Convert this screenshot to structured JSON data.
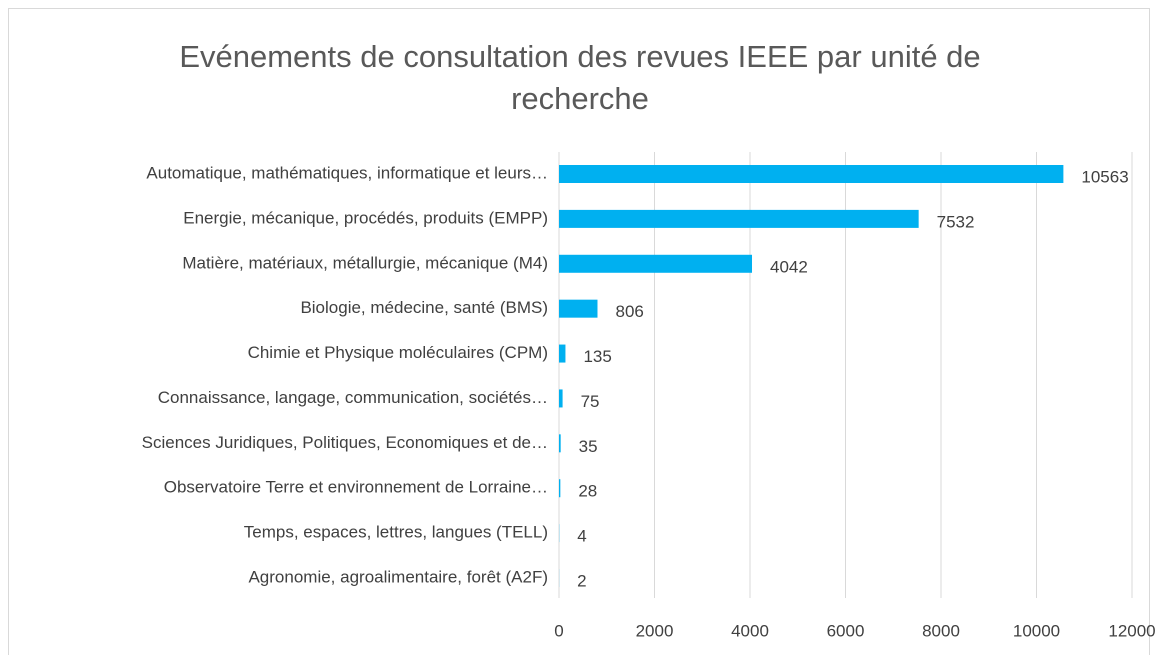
{
  "chart_data": {
    "type": "barh",
    "title": "Evénements de consultation des revues IEEE par unité de recherche",
    "categories": [
      "Automatique, mathématiques, informatique et leurs…",
      "Energie, mécanique, procédés, produits (EMPP)",
      "Matière, matériaux, métallurgie, mécanique (M4)",
      "Biologie, médecine, santé (BMS)",
      "Chimie et Physique moléculaires (CPM)",
      "Connaissance, langage, communication, sociétés…",
      "Sciences Juridiques, Politiques, Economiques et de…",
      "Observatoire Terre et environnement de Lorraine…",
      "Temps, espaces, lettres, langues (TELL)",
      "Agronomie, agroalimentaire, forêt (A2F)"
    ],
    "values": [
      10563,
      7532,
      4042,
      806,
      135,
      75,
      35,
      28,
      4,
      2
    ],
    "color": "#00b0f0",
    "xlim": [
      0,
      12000
    ],
    "xticks": [
      0,
      2000,
      4000,
      6000,
      8000,
      10000,
      12000
    ],
    "grid": true
  }
}
